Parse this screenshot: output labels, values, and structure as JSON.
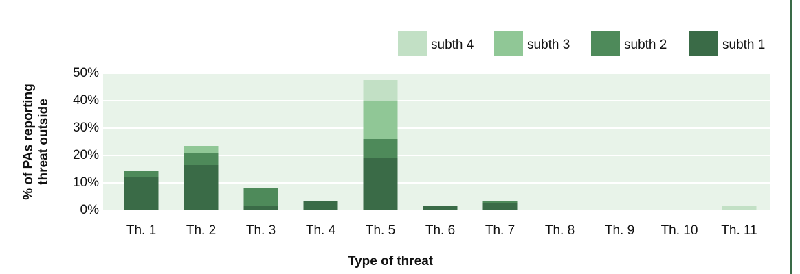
{
  "chart_data": {
    "type": "stacked_bar",
    "x_label": "Type of threat",
    "y_label": [
      "% of PAs reporting",
      "threat outside"
    ],
    "categories": [
      "Th. 1",
      "Th. 2",
      "Th. 3",
      "Th. 4",
      "Th. 5",
      "Th. 6",
      "Th. 7",
      "Th. 8",
      "Th. 9",
      "Th. 10",
      "Th. 11"
    ],
    "series": [
      {
        "name": "subth 1",
        "color": "#3a6b47",
        "values": [
          12,
          16.5,
          1.5,
          3.5,
          19,
          1.5,
          2.5,
          0,
          0,
          0,
          0
        ]
      },
      {
        "name": "subth 2",
        "color": "#4e8a5a",
        "values": [
          2.5,
          4.5,
          6.5,
          0,
          7,
          0,
          1,
          0,
          0,
          0,
          0
        ]
      },
      {
        "name": "subth 3",
        "color": "#90c796",
        "values": [
          0,
          2.5,
          0,
          0,
          14,
          0,
          0,
          0,
          0,
          0,
          0
        ]
      },
      {
        "name": "subth 4",
        "color": "#c2e0c5",
        "values": [
          0,
          0,
          0,
          0,
          7.5,
          0,
          0,
          0,
          0,
          0,
          1.5
        ]
      }
    ],
    "ylim": [
      0,
      50
    ],
    "yticks": [
      {
        "value": 0,
        "label": "0%"
      },
      {
        "value": 10,
        "label": "10%"
      },
      {
        "value": 20,
        "label": "20%"
      },
      {
        "value": 30,
        "label": "30%"
      },
      {
        "value": 40,
        "label": "40%"
      },
      {
        "value": 50,
        "label": "50%"
      }
    ],
    "grid": true
  }
}
